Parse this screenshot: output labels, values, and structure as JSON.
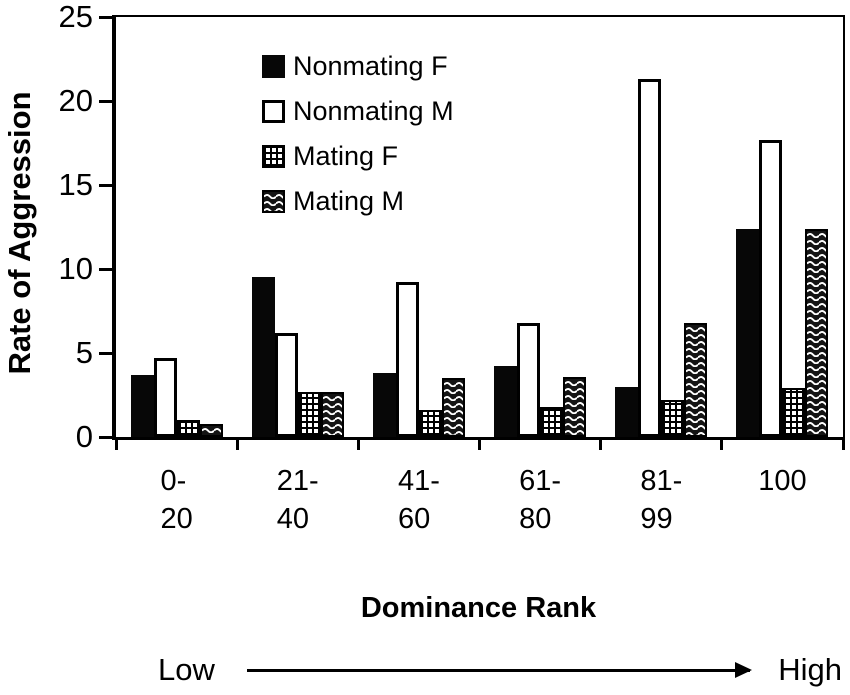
{
  "chart_data": {
    "type": "bar",
    "title": "",
    "ylabel": "Rate of Aggression",
    "xlabel": "Dominance Rank",
    "ylim": [
      0,
      25
    ],
    "ytick_step": 5,
    "yticks": [
      "0",
      "5",
      "10",
      "15",
      "20",
      "25"
    ],
    "grid": false,
    "legend_position": "top-left-inside",
    "categories": [
      [
        "0-",
        "20"
      ],
      [
        "21-",
        "40"
      ],
      [
        "41-",
        "60"
      ],
      [
        "61-",
        "80"
      ],
      [
        "81-",
        "99"
      ],
      [
        "100"
      ]
    ],
    "series": [
      {
        "name": "Nonmating F",
        "pattern": "solid",
        "values": [
          3.7,
          9.5,
          3.8,
          4.2,
          3.0,
          12.4
        ]
      },
      {
        "name": "Nonmating M",
        "pattern": "open",
        "values": [
          4.7,
          6.2,
          9.2,
          6.8,
          21.3,
          17.7
        ]
      },
      {
        "name": "Mating F",
        "pattern": "grid",
        "values": [
          1.0,
          2.7,
          1.6,
          1.8,
          2.2,
          2.9
        ]
      },
      {
        "name": "Mating M",
        "pattern": "wave",
        "values": [
          0.8,
          2.7,
          3.5,
          3.6,
          6.8,
          12.4
        ]
      }
    ],
    "annotations": {
      "low": "Low",
      "high": "High"
    },
    "colors": {
      "ink": "#000000",
      "paper": "#ffffff"
    }
  }
}
